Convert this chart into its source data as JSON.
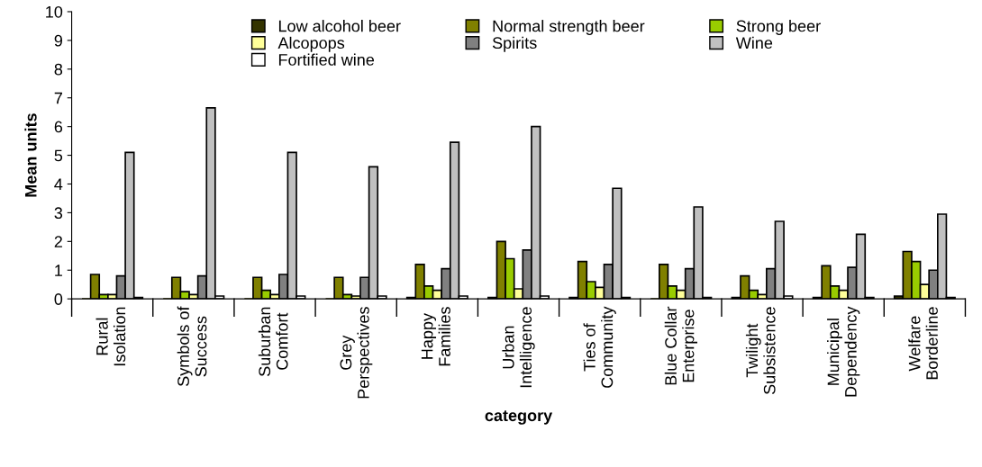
{
  "chart_data": {
    "type": "bar",
    "xlabel": "category",
    "ylabel": "Mean units",
    "categories": [
      "Rural\nIsolation",
      "Symbols of\nSuccess",
      "Suburban\nComfort",
      "Grey\nPerspectives",
      "Happy\nFamilies",
      "Urban\nIntelligence",
      "Ties of\nCommunity",
      "Blue Collar\nEnterprise",
      "Twilight\nSubsistence",
      "Municipal\nDependency",
      "Welfare\nBorderline"
    ],
    "series": [
      {
        "name": "Low alcohol beer",
        "color": "#333300",
        "values": [
          0,
          0,
          0,
          0,
          0.05,
          0.05,
          0.05,
          0,
          0.05,
          0.05,
          0.1
        ]
      },
      {
        "name": "Normal strength beer",
        "color": "#808000",
        "values": [
          0.85,
          0.75,
          0.75,
          0.75,
          1.2,
          2.0,
          1.3,
          1.2,
          0.8,
          1.15,
          1.65
        ]
      },
      {
        "name": "Strong beer",
        "color": "#99cc00",
        "values": [
          0.15,
          0.25,
          0.3,
          0.15,
          0.45,
          1.4,
          0.6,
          0.45,
          0.3,
          0.45,
          1.3
        ]
      },
      {
        "name": "Alcopops",
        "color": "#ffff99",
        "values": [
          0.15,
          0.15,
          0.15,
          0.1,
          0.3,
          0.35,
          0.4,
          0.3,
          0.15,
          0.3,
          0.5
        ]
      },
      {
        "name": "Spirits",
        "color": "#808080",
        "values": [
          0.8,
          0.8,
          0.85,
          0.75,
          1.05,
          1.7,
          1.2,
          1.05,
          1.05,
          1.1,
          1.0
        ]
      },
      {
        "name": "Wine",
        "color": "#c0c0c0",
        "values": [
          5.1,
          6.65,
          5.1,
          4.6,
          5.45,
          6.0,
          3.85,
          3.2,
          2.7,
          2.25,
          2.95
        ]
      },
      {
        "name": "Fortified wine",
        "color": "#ffffff",
        "values": [
          0.05,
          0.1,
          0.1,
          0.1,
          0.1,
          0.1,
          0.05,
          0.05,
          0.1,
          0.05,
          0.05
        ]
      }
    ],
    "ylim": [
      0,
      10
    ],
    "yticks": [
      0,
      1,
      2,
      3,
      4,
      5,
      6,
      7,
      8,
      9,
      10
    ],
    "grid": false,
    "legend": "top"
  }
}
